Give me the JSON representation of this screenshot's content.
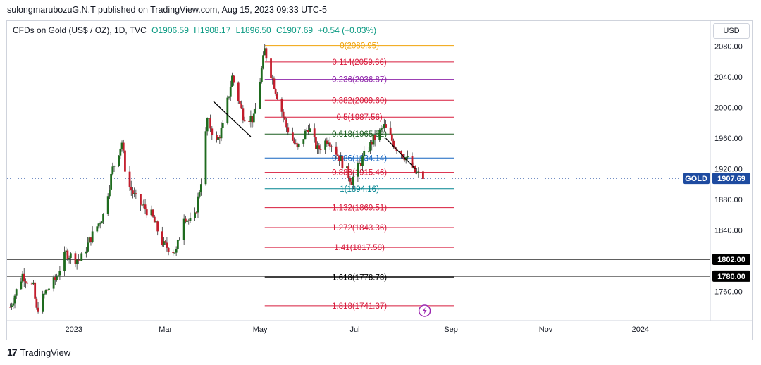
{
  "header": {
    "published": "sulongmarubozuG.N.T published on TradingView.com, Aug 15, 2023 09:33 UTC-5"
  },
  "legend": {
    "symbol": "CFDs on Gold (US$ / OZ), 1D, TVC",
    "open": "O1906.59",
    "high": "H1908.17",
    "low": "L1896.50",
    "close": "C1907.69",
    "change": "+0.54 (+0.03%)"
  },
  "currency_button": "USD",
  "footer": {
    "brand": "TradingView"
  },
  "colors": {
    "up": "#089981",
    "down": "#f23645",
    "candle_body_up": "#1e6b1e",
    "candle_body_down": "#c21d2c",
    "price_tag_bg": "#1e4ba0",
    "level_tag_bg": "#000000"
  },
  "chart_data": {
    "type": "candlestick",
    "instrument": "GOLD",
    "last_price": 1907.69,
    "x_ticks": [
      "2023",
      "Mar",
      "May",
      "Jul",
      "Sep",
      "Nov",
      "2024"
    ],
    "y_ticks": [
      1760.0,
      1800.0,
      1840.0,
      1880.0,
      1920.0,
      1960.0,
      2000.0,
      2040.0,
      2080.0
    ],
    "ylim": [
      1722,
      2088
    ],
    "x_range": [
      "2022-11-19",
      "2024-02-15"
    ],
    "price_tag": {
      "label": "GOLD",
      "value": "1907.69"
    },
    "horizontal_levels": [
      {
        "value": 1802.0,
        "label": "1802.00"
      },
      {
        "value": 1780.0,
        "label": "1780.00"
      }
    ],
    "fibonacci": [
      {
        "ratio": "0",
        "price": 2080.95,
        "label": "0(2080.95)",
        "color": "#f0a30a"
      },
      {
        "ratio": "0.114",
        "price": 2059.66,
        "label": "0.114(2059.66)",
        "color": "#d81b3c"
      },
      {
        "ratio": "0.236",
        "price": 2036.87,
        "label": "0.236(2036.87)",
        "color": "#8e24aa"
      },
      {
        "ratio": "0.382",
        "price": 2009.6,
        "label": "0.382(2009.60)",
        "color": "#d81b3c"
      },
      {
        "ratio": "0.5",
        "price": 1987.56,
        "label": "0.5(1987.56)",
        "color": "#d81b3c"
      },
      {
        "ratio": "0.618",
        "price": 1965.52,
        "label": "0.618(1965.52)",
        "color": "#1b5e20"
      },
      {
        "ratio": "0.786",
        "price": 1934.14,
        "label": "0.786(1934.14)",
        "color": "#1565c0"
      },
      {
        "ratio": "0.886",
        "price": 1915.46,
        "label": "0.886(1915.46)",
        "color": "#d81b3c"
      },
      {
        "ratio": "1",
        "price": 1894.16,
        "label": "1(1894.16)",
        "color": "#00838f"
      },
      {
        "ratio": "1.132",
        "price": 1869.51,
        "label": "1.132(1869.51)",
        "color": "#d81b3c"
      },
      {
        "ratio": "1.272",
        "price": 1843.36,
        "label": "1.272(1843.36)",
        "color": "#d81b3c"
      },
      {
        "ratio": "1.41",
        "price": 1817.58,
        "label": "1.41(1817.58)",
        "color": "#d81b3c"
      },
      {
        "ratio": "1.618",
        "price": 1778.73,
        "label": "1.618(1778.73)",
        "color": "#000000"
      },
      {
        "ratio": "1.818",
        "price": 1741.37,
        "label": "1.818(1741.37)",
        "color": "#d81b3c"
      }
    ],
    "fib_start_date": "2023-05-04",
    "fib_end_date": "2023-09-03",
    "trendlines": [
      {
        "from": {
          "date": "2023-04-01",
          "price": 2008
        },
        "to": {
          "date": "2023-04-25",
          "price": 1962
        }
      },
      {
        "from": {
          "date": "2023-07-21",
          "price": 1960
        },
        "to": {
          "date": "2023-08-09",
          "price": 1920
        }
      }
    ],
    "price_path": [
      [
        "2022-11-21",
        1740
      ],
      [
        "2022-11-29",
        1782
      ],
      [
        "2022-12-06",
        1765
      ],
      [
        "2022-12-08",
        1735
      ],
      [
        "2022-12-14",
        1760
      ],
      [
        "2022-12-20",
        1775
      ],
      [
        "2022-12-27",
        1810
      ],
      [
        "2023-01-05",
        1800
      ],
      [
        "2023-01-12",
        1830
      ],
      [
        "2023-01-20",
        1860
      ],
      [
        "2023-01-26",
        1920
      ],
      [
        "2023-02-01",
        1955
      ],
      [
        "2023-02-04",
        1905
      ],
      [
        "2023-02-10",
        1880
      ],
      [
        "2023-02-20",
        1860
      ],
      [
        "2023-02-28",
        1820
      ],
      [
        "2023-03-08",
        1812
      ],
      [
        "2023-03-13",
        1860
      ],
      [
        "2023-03-19",
        1845
      ],
      [
        "2023-03-24",
        1905
      ],
      [
        "2023-03-28",
        1985
      ],
      [
        "2023-04-03",
        1955
      ],
      [
        "2023-04-07",
        1975
      ],
      [
        "2023-04-13",
        2040
      ],
      [
        "2023-04-20",
        1990
      ],
      [
        "2023-04-27",
        1985
      ],
      [
        "2023-05-04",
        2075
      ],
      [
        "2023-05-10",
        2030
      ],
      [
        "2023-05-18",
        1975
      ],
      [
        "2023-05-25",
        1945
      ],
      [
        "2023-06-01",
        1975
      ],
      [
        "2023-06-07",
        1945
      ],
      [
        "2023-06-14",
        1960
      ],
      [
        "2023-06-21",
        1935
      ],
      [
        "2023-06-29",
        1905
      ],
      [
        "2023-07-04",
        1925
      ],
      [
        "2023-07-12",
        1955
      ],
      [
        "2023-07-20",
        1975
      ],
      [
        "2023-07-27",
        1950
      ],
      [
        "2023-08-03",
        1935
      ],
      [
        "2023-08-09",
        1915
      ],
      [
        "2023-08-15",
        1907.69
      ]
    ]
  }
}
